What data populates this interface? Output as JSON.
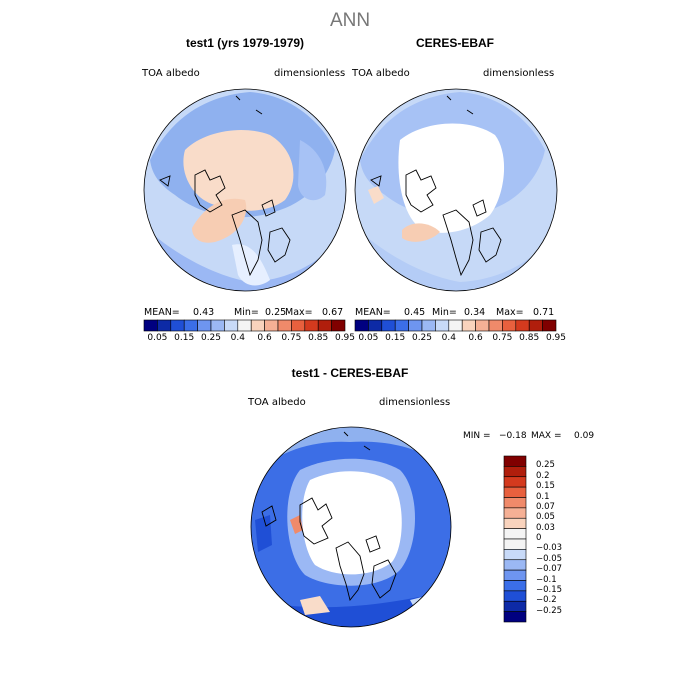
{
  "title": "ANN",
  "panels": [
    {
      "id": "test1",
      "title": "test1 (yrs 1979-1979)",
      "variable": "TOA  albedo",
      "units": "dimensionless",
      "mean_label": "MEAN=",
      "mean": "0.43",
      "min_label": "Min=",
      "min": "0.25",
      "max_label": "Max=",
      "max": "0.67"
    },
    {
      "id": "ceres",
      "title": "CERES-EBAF",
      "variable": "TOA  albedo",
      "units": "dimensionless",
      "mean_label": "MEAN=",
      "mean": "0.45",
      "min_label": "Min=",
      "min": "0.34",
      "max_label": "Max=",
      "max": "0.71"
    }
  ],
  "diff_panel": {
    "title": "test1 - CERES-EBAF",
    "variable": "TOA  albedo",
    "units": "dimensionless",
    "min_label": "MIN =",
    "min": "−0.18",
    "max_label": "MAX =",
    "max": "0.09"
  },
  "colorbar_horizontal": {
    "tick_labels": [
      "0.05",
      "0.15",
      "0.25",
      "0.4",
      "0.6",
      "0.75",
      "0.85",
      "0.95"
    ],
    "colors": [
      "#000080",
      "#0d2aa6",
      "#1f4fd6",
      "#3b6ee8",
      "#6e95f0",
      "#9bb8f4",
      "#c8daf8",
      "#f4f4f4",
      "#f9d3bd",
      "#f5b095",
      "#f08a6a",
      "#e8603e",
      "#d43a1e",
      "#b01e0c",
      "#800000"
    ]
  },
  "colorbar_vertical": {
    "tick_labels": [
      "0.25",
      "0.2",
      "0.15",
      "0.1",
      "0.07",
      "0.05",
      "0.03",
      "0",
      "−0.03",
      "−0.05",
      "−0.07",
      "−0.1",
      "−0.15",
      "−0.2",
      "−0.25"
    ],
    "colors": [
      "#800000",
      "#b01e0c",
      "#d43a1e",
      "#e8603e",
      "#f08a6a",
      "#f5b095",
      "#f9d3bd",
      "#f4f4f4",
      "#f4f4f4",
      "#c8daf8",
      "#9bb8f4",
      "#6e95f0",
      "#3b6ee8",
      "#1f4fd6",
      "#0d2aa6",
      "#000080"
    ]
  },
  "chart_data": {
    "type": "heatmap",
    "title": "ANN",
    "projection": "north-polar-stereographic",
    "panels": [
      {
        "title": "test1 (yrs 1979-1979)",
        "variable": "TOA albedo",
        "units": "dimensionless",
        "mean": 0.43,
        "min": 0.25,
        "max": 0.67
      },
      {
        "title": "CERES-EBAF",
        "variable": "TOA albedo",
        "units": "dimensionless",
        "mean": 0.45,
        "min": 0.34,
        "max": 0.71
      },
      {
        "title": "test1 - CERES-EBAF",
        "variable": "TOA albedo",
        "units": "dimensionless",
        "min": -0.18,
        "max": 0.09
      }
    ],
    "contour_levels_fields": [
      0.05,
      0.15,
      0.25,
      0.4,
      0.6,
      0.75,
      0.85,
      0.95
    ],
    "contour_levels_difference": [
      -0.25,
      -0.2,
      -0.15,
      -0.1,
      -0.07,
      -0.05,
      -0.03,
      0,
      0.03,
      0.05,
      0.07,
      0.1,
      0.15,
      0.2,
      0.25
    ]
  }
}
